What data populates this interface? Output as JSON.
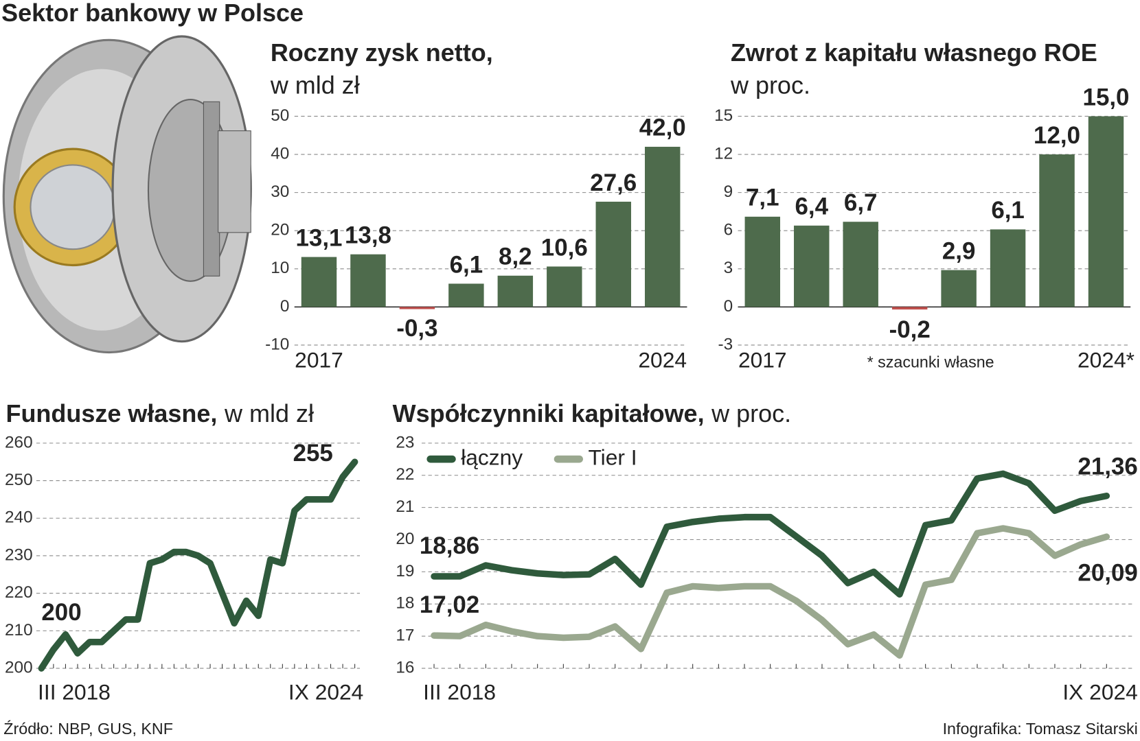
{
  "title": "Sektor bankowy w Polsce",
  "source": "Źródło: NBP, GUS, KNF",
  "credit": "Infografika: Tomasz Sitarski",
  "chart_data": [
    {
      "type": "bar",
      "title": "Roczny zysk netto,",
      "subtitle": "w mld zł",
      "categories": [
        "2017",
        null,
        null,
        null,
        null,
        null,
        null,
        "2024"
      ],
      "values": [
        13.1,
        13.8,
        -0.3,
        6.1,
        8.2,
        10.6,
        27.6,
        42.0
      ],
      "value_labels": [
        "13,1",
        "13,8",
        "-0,3",
        "6,1",
        "8,2",
        "10,6",
        "27,6",
        "42,0"
      ],
      "color": "#4e6b4c",
      "negative_color": "#c0504d",
      "ylim": [
        -10,
        50
      ],
      "yticks": [
        -10,
        0,
        10,
        20,
        30,
        40,
        50
      ],
      "grid": true
    },
    {
      "type": "bar",
      "title": "Zwrot z kapitału własnego ROE",
      "subtitle": "w proc.",
      "note": "* szacunki własne",
      "categories": [
        "2017",
        null,
        null,
        null,
        null,
        null,
        null,
        "2024*"
      ],
      "values": [
        7.1,
        6.4,
        6.7,
        -0.2,
        2.9,
        6.1,
        12.0,
        15.0
      ],
      "value_labels": [
        "7,1",
        "6,4",
        "6,7",
        "-0,2",
        "2,9",
        "6,1",
        "12,0",
        "15,0"
      ],
      "color": "#4e6b4c",
      "negative_color": "#c0504d",
      "ylim": [
        -3,
        15
      ],
      "yticks": [
        -3,
        0,
        3,
        6,
        9,
        12,
        15
      ],
      "grid": true
    },
    {
      "type": "line",
      "title": "Fundusze własne,",
      "subtitle": "w mld zł",
      "categories": [
        "III 2018",
        null,
        null,
        null,
        null,
        null,
        null,
        null,
        null,
        null,
        null,
        null,
        null,
        null,
        null,
        null,
        null,
        null,
        null,
        null,
        null,
        null,
        null,
        null,
        null,
        null,
        "IX 2024"
      ],
      "values": [
        200,
        205,
        209,
        204,
        207,
        207,
        210,
        213,
        213,
        228,
        229,
        231,
        231,
        230,
        228,
        220,
        212,
        218,
        214,
        229,
        228,
        242,
        245,
        245,
        245,
        251,
        255
      ],
      "color": "#2f5a3c",
      "ylim": [
        200,
        260
      ],
      "yticks": [
        200,
        210,
        220,
        230,
        240,
        250,
        260
      ],
      "grid": true
    },
    {
      "type": "line",
      "title": "Współczynniki kapitałowe,",
      "subtitle": "w proc.",
      "categories": [
        "III 2018",
        null,
        null,
        null,
        null,
        null,
        null,
        null,
        null,
        null,
        null,
        null,
        null,
        null,
        null,
        null,
        null,
        null,
        null,
        null,
        null,
        null,
        null,
        null,
        null,
        null,
        "IX 2024"
      ],
      "series": [
        {
          "name": "łączny",
          "color": "#2f5a3c",
          "values": [
            18.86,
            18.86,
            19.2,
            19.05,
            18.95,
            18.9,
            18.92,
            19.4,
            18.6,
            20.4,
            20.55,
            20.65,
            20.7,
            20.7,
            20.1,
            19.5,
            18.65,
            19.0,
            18.3,
            20.45,
            20.6,
            21.9,
            22.05,
            21.75,
            20.9,
            21.2,
            21.36
          ],
          "value_labels": [
            "18,86",
            null,
            null,
            null,
            null,
            null,
            null,
            null,
            null,
            null,
            null,
            null,
            null,
            null,
            null,
            null,
            null,
            null,
            null,
            null,
            null,
            null,
            null,
            null,
            null,
            null,
            "21,36"
          ]
        },
        {
          "name": "Tier I",
          "color": "#9aa88f",
          "values": [
            17.02,
            17.0,
            17.35,
            17.15,
            17.0,
            16.95,
            16.98,
            17.3,
            16.6,
            18.35,
            18.55,
            18.5,
            18.55,
            18.55,
            18.1,
            17.5,
            16.75,
            17.05,
            16.4,
            18.6,
            18.75,
            20.2,
            20.35,
            20.2,
            19.5,
            19.85,
            20.09
          ],
          "value_labels": [
            "17,02",
            null,
            null,
            null,
            null,
            null,
            null,
            null,
            null,
            null,
            null,
            null,
            null,
            null,
            null,
            null,
            null,
            null,
            null,
            null,
            null,
            null,
            null,
            null,
            null,
            null,
            "20,09"
          ]
        }
      ],
      "ylim": [
        16,
        23
      ],
      "yticks": [
        16,
        17,
        18,
        19,
        20,
        21,
        22,
        23
      ],
      "grid": true,
      "legend": "top-left"
    }
  ]
}
